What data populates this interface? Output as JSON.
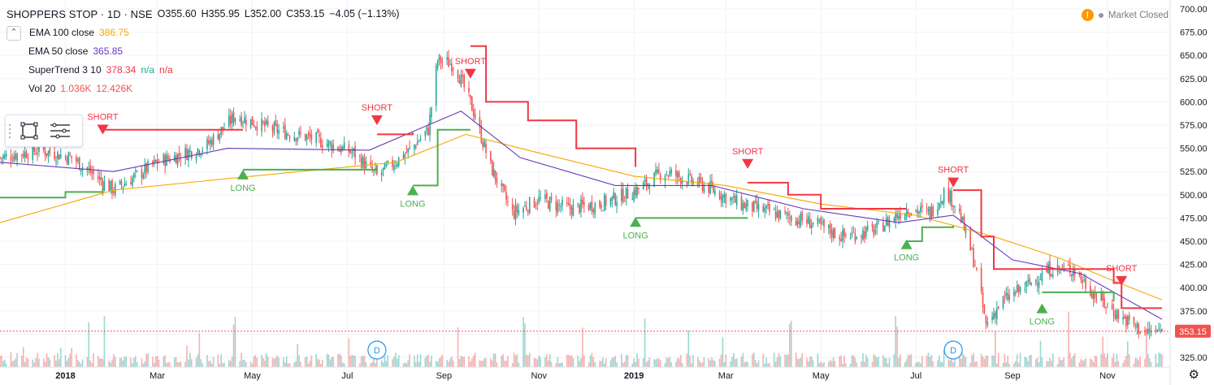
{
  "header": {
    "symbol_title": "SHOPPERS STOP · 1D · NSE",
    "open": "O355.60",
    "high": "H355.95",
    "low": "L352.00",
    "close": "C353.15",
    "change": "−4.05 (−1.13%)",
    "collapse_icon": "chevron-up-icon"
  },
  "indicators": [
    {
      "label": "EMA 100 close",
      "value": "386.75",
      "color": "#f7a600"
    },
    {
      "label": "EMA 50 close",
      "value": "365.85",
      "color": "#673ab7"
    },
    {
      "label": "SuperTrend 3 10",
      "value": "378.34",
      "extra1": "n/a",
      "extra2": "n/a",
      "color": "#f23645",
      "extra_color": "#26a69a"
    },
    {
      "label": "Vol 20",
      "value": "1.036K",
      "value2": "12.426K",
      "color": "#ef5350"
    }
  ],
  "market_status": {
    "icon": "warning-icon",
    "text": "Market Closed"
  },
  "settings_icon": "gear-icon",
  "drawing_tools": [
    {
      "icon": "rectangle-icon"
    },
    {
      "icon": "menu-icon"
    }
  ],
  "price_badge": "353.15",
  "dividend_markers": [
    "D",
    "D"
  ],
  "colors": {
    "up": "#26a69a",
    "down": "#ef5350",
    "long": "#4caf50",
    "short": "#f23645",
    "ema100": "#f7a600",
    "ema50": "#673ab7"
  },
  "chart_data": {
    "type": "candlestick",
    "symbol": "SHOPPERS STOP",
    "interval": "1D",
    "exchange": "NSE",
    "y_axis": {
      "min": 325,
      "max": 700,
      "ticks": [
        "700.00",
        "675.00",
        "650.00",
        "625.00",
        "600.00",
        "575.00",
        "550.00",
        "525.00",
        "500.00",
        "475.00",
        "450.00",
        "425.00",
        "400.00",
        "375.00",
        "350.00",
        "325.00"
      ]
    },
    "x_axis": {
      "ticks": [
        "2018",
        "Mar",
        "May",
        "Jul",
        "Sep",
        "Nov",
        "2019",
        "Mar",
        "May",
        "Jul",
        "Sep",
        "Nov"
      ],
      "start": "2017-11-20",
      "end": "2019-12-06"
    },
    "last_price": 353.15,
    "close_path": [
      [
        "2017-11-20",
        540
      ],
      [
        "2017-12-15",
        548
      ],
      [
        "2018-01-05",
        540
      ],
      [
        "2018-02-01",
        505
      ],
      [
        "2018-03-01",
        535
      ],
      [
        "2018-04-01",
        552
      ],
      [
        "2018-04-20",
        585
      ],
      [
        "2018-05-15",
        570
      ],
      [
        "2018-06-10",
        560
      ],
      [
        "2018-07-05",
        545
      ],
      [
        "2018-07-20",
        520
      ],
      [
        "2018-08-10",
        548
      ],
      [
        "2018-08-22",
        570
      ],
      [
        "2018-08-28",
        645
      ],
      [
        "2018-09-08",
        640
      ],
      [
        "2018-09-20",
        590
      ],
      [
        "2018-10-01",
        530
      ],
      [
        "2018-10-15",
        480
      ],
      [
        "2018-11-01",
        495
      ],
      [
        "2018-11-20",
        485
      ],
      [
        "2018-12-10",
        490
      ],
      [
        "2019-01-03",
        505
      ],
      [
        "2019-01-20",
        525
      ],
      [
        "2019-02-15",
        510
      ],
      [
        "2019-03-10",
        490
      ],
      [
        "2019-04-01",
        480
      ],
      [
        "2019-04-25",
        470
      ],
      [
        "2019-05-15",
        455
      ],
      [
        "2019-06-05",
        462
      ],
      [
        "2019-06-25",
        485
      ],
      [
        "2019-07-10",
        480
      ],
      [
        "2019-07-20",
        505
      ],
      [
        "2019-07-28",
        485
      ],
      [
        "2019-08-08",
        425
      ],
      [
        "2019-08-15",
        360
      ],
      [
        "2019-08-25",
        385
      ],
      [
        "2019-09-10",
        402
      ],
      [
        "2019-09-25",
        420
      ],
      [
        "2019-10-10",
        420
      ],
      [
        "2019-10-25",
        390
      ],
      [
        "2019-11-10",
        368
      ],
      [
        "2019-11-25",
        352
      ],
      [
        "2019-12-06",
        353
      ]
    ],
    "ema100_path": [
      [
        "2017-11-20",
        470
      ],
      [
        "2018-02-01",
        505
      ],
      [
        "2018-05-01",
        520
      ],
      [
        "2018-08-01",
        535
      ],
      [
        "2018-09-15",
        565
      ],
      [
        "2018-11-01",
        545
      ],
      [
        "2019-01-01",
        520
      ],
      [
        "2019-03-01",
        510
      ],
      [
        "2019-05-01",
        490
      ],
      [
        "2019-07-01",
        478
      ],
      [
        "2019-08-20",
        455
      ],
      [
        "2019-10-01",
        432
      ],
      [
        "2019-11-01",
        410
      ],
      [
        "2019-12-06",
        387
      ]
    ],
    "ema50_path": [
      [
        "2017-11-20",
        535
      ],
      [
        "2018-02-01",
        525
      ],
      [
        "2018-04-15",
        550
      ],
      [
        "2018-07-15",
        548
      ],
      [
        "2018-09-12",
        590
      ],
      [
        "2018-10-20",
        540
      ],
      [
        "2018-12-20",
        510
      ],
      [
        "2019-02-20",
        510
      ],
      [
        "2019-04-20",
        485
      ],
      [
        "2019-06-20",
        470
      ],
      [
        "2019-07-25",
        478
      ],
      [
        "2019-09-01",
        430
      ],
      [
        "2019-10-15",
        415
      ],
      [
        "2019-12-06",
        366
      ]
    ],
    "supertrend_segments": [
      {
        "trend": "long",
        "points": [
          [
            "2017-11-20",
            497
          ],
          [
            "2018-01-01",
            503
          ],
          [
            "2018-01-25",
            507
          ]
        ]
      },
      {
        "trend": "short",
        "points": [
          [
            "2018-01-25",
            570
          ],
          [
            "2018-04-25",
            570
          ]
        ]
      },
      {
        "trend": "long",
        "points": [
          [
            "2018-04-25",
            527
          ],
          [
            "2018-07-20",
            532
          ]
        ]
      },
      {
        "trend": "short",
        "points": [
          [
            "2018-07-20",
            565
          ],
          [
            "2018-08-12",
            567
          ]
        ]
      },
      {
        "trend": "long",
        "points": [
          [
            "2018-08-12",
            510
          ],
          [
            "2018-08-26",
            510
          ],
          [
            "2018-08-28",
            570
          ],
          [
            "2018-09-18",
            570
          ]
        ]
      },
      {
        "trend": "short",
        "points": [
          [
            "2018-09-18",
            660
          ],
          [
            "2018-09-28",
            600
          ],
          [
            "2018-10-25",
            580
          ],
          [
            "2018-11-25",
            550
          ],
          [
            "2019-01-02",
            530
          ]
        ]
      },
      {
        "trend": "long",
        "points": [
          [
            "2019-01-02",
            475
          ],
          [
            "2019-03-15",
            475
          ]
        ]
      },
      {
        "trend": "short",
        "points": [
          [
            "2019-03-15",
            513
          ],
          [
            "2019-04-10",
            500
          ],
          [
            "2019-05-01",
            485
          ],
          [
            "2019-06-25",
            485
          ]
        ]
      },
      {
        "trend": "long",
        "points": [
          [
            "2019-06-25",
            450
          ],
          [
            "2019-07-05",
            465
          ],
          [
            "2019-07-25",
            467
          ]
        ]
      },
      {
        "trend": "short",
        "points": [
          [
            "2019-07-25",
            505
          ],
          [
            "2019-08-12",
            455
          ],
          [
            "2019-08-20",
            420
          ],
          [
            "2019-10-01",
            420
          ],
          [
            "2019-11-05",
            405
          ],
          [
            "2019-11-10",
            378
          ],
          [
            "2019-12-06",
            378
          ]
        ]
      },
      {
        "trend": "long",
        "points": [
          [
            "2019-09-20",
            395
          ],
          [
            "2019-11-05",
            385
          ]
        ]
      }
    ],
    "signals": [
      {
        "label": "SHORT",
        "date": "2018-01-25",
        "price": 565,
        "type": "short"
      },
      {
        "label": "LONG",
        "date": "2018-04-25",
        "price": 527,
        "type": "long"
      },
      {
        "label": "SHORT",
        "date": "2018-07-20",
        "price": 575,
        "type": "short"
      },
      {
        "label": "LONG",
        "date": "2018-08-12",
        "price": 510,
        "type": "long"
      },
      {
        "label": "SHORT",
        "date": "2018-09-18",
        "price": 625,
        "type": "short"
      },
      {
        "label": "LONG",
        "date": "2019-01-02",
        "price": 476,
        "type": "long"
      },
      {
        "label": "SHORT",
        "date": "2019-03-15",
        "price": 528,
        "type": "short"
      },
      {
        "label": "LONG",
        "date": "2019-06-25",
        "price": 452,
        "type": "long"
      },
      {
        "label": "SHORT",
        "date": "2019-07-25",
        "price": 508,
        "type": "short"
      },
      {
        "label": "LONG",
        "date": "2019-09-20",
        "price": 383,
        "type": "long"
      },
      {
        "label": "SHORT",
        "date": "2019-11-10",
        "price": 402,
        "type": "short"
      }
    ],
    "dividends": [
      "2018-07-20",
      "2019-07-25"
    ]
  }
}
